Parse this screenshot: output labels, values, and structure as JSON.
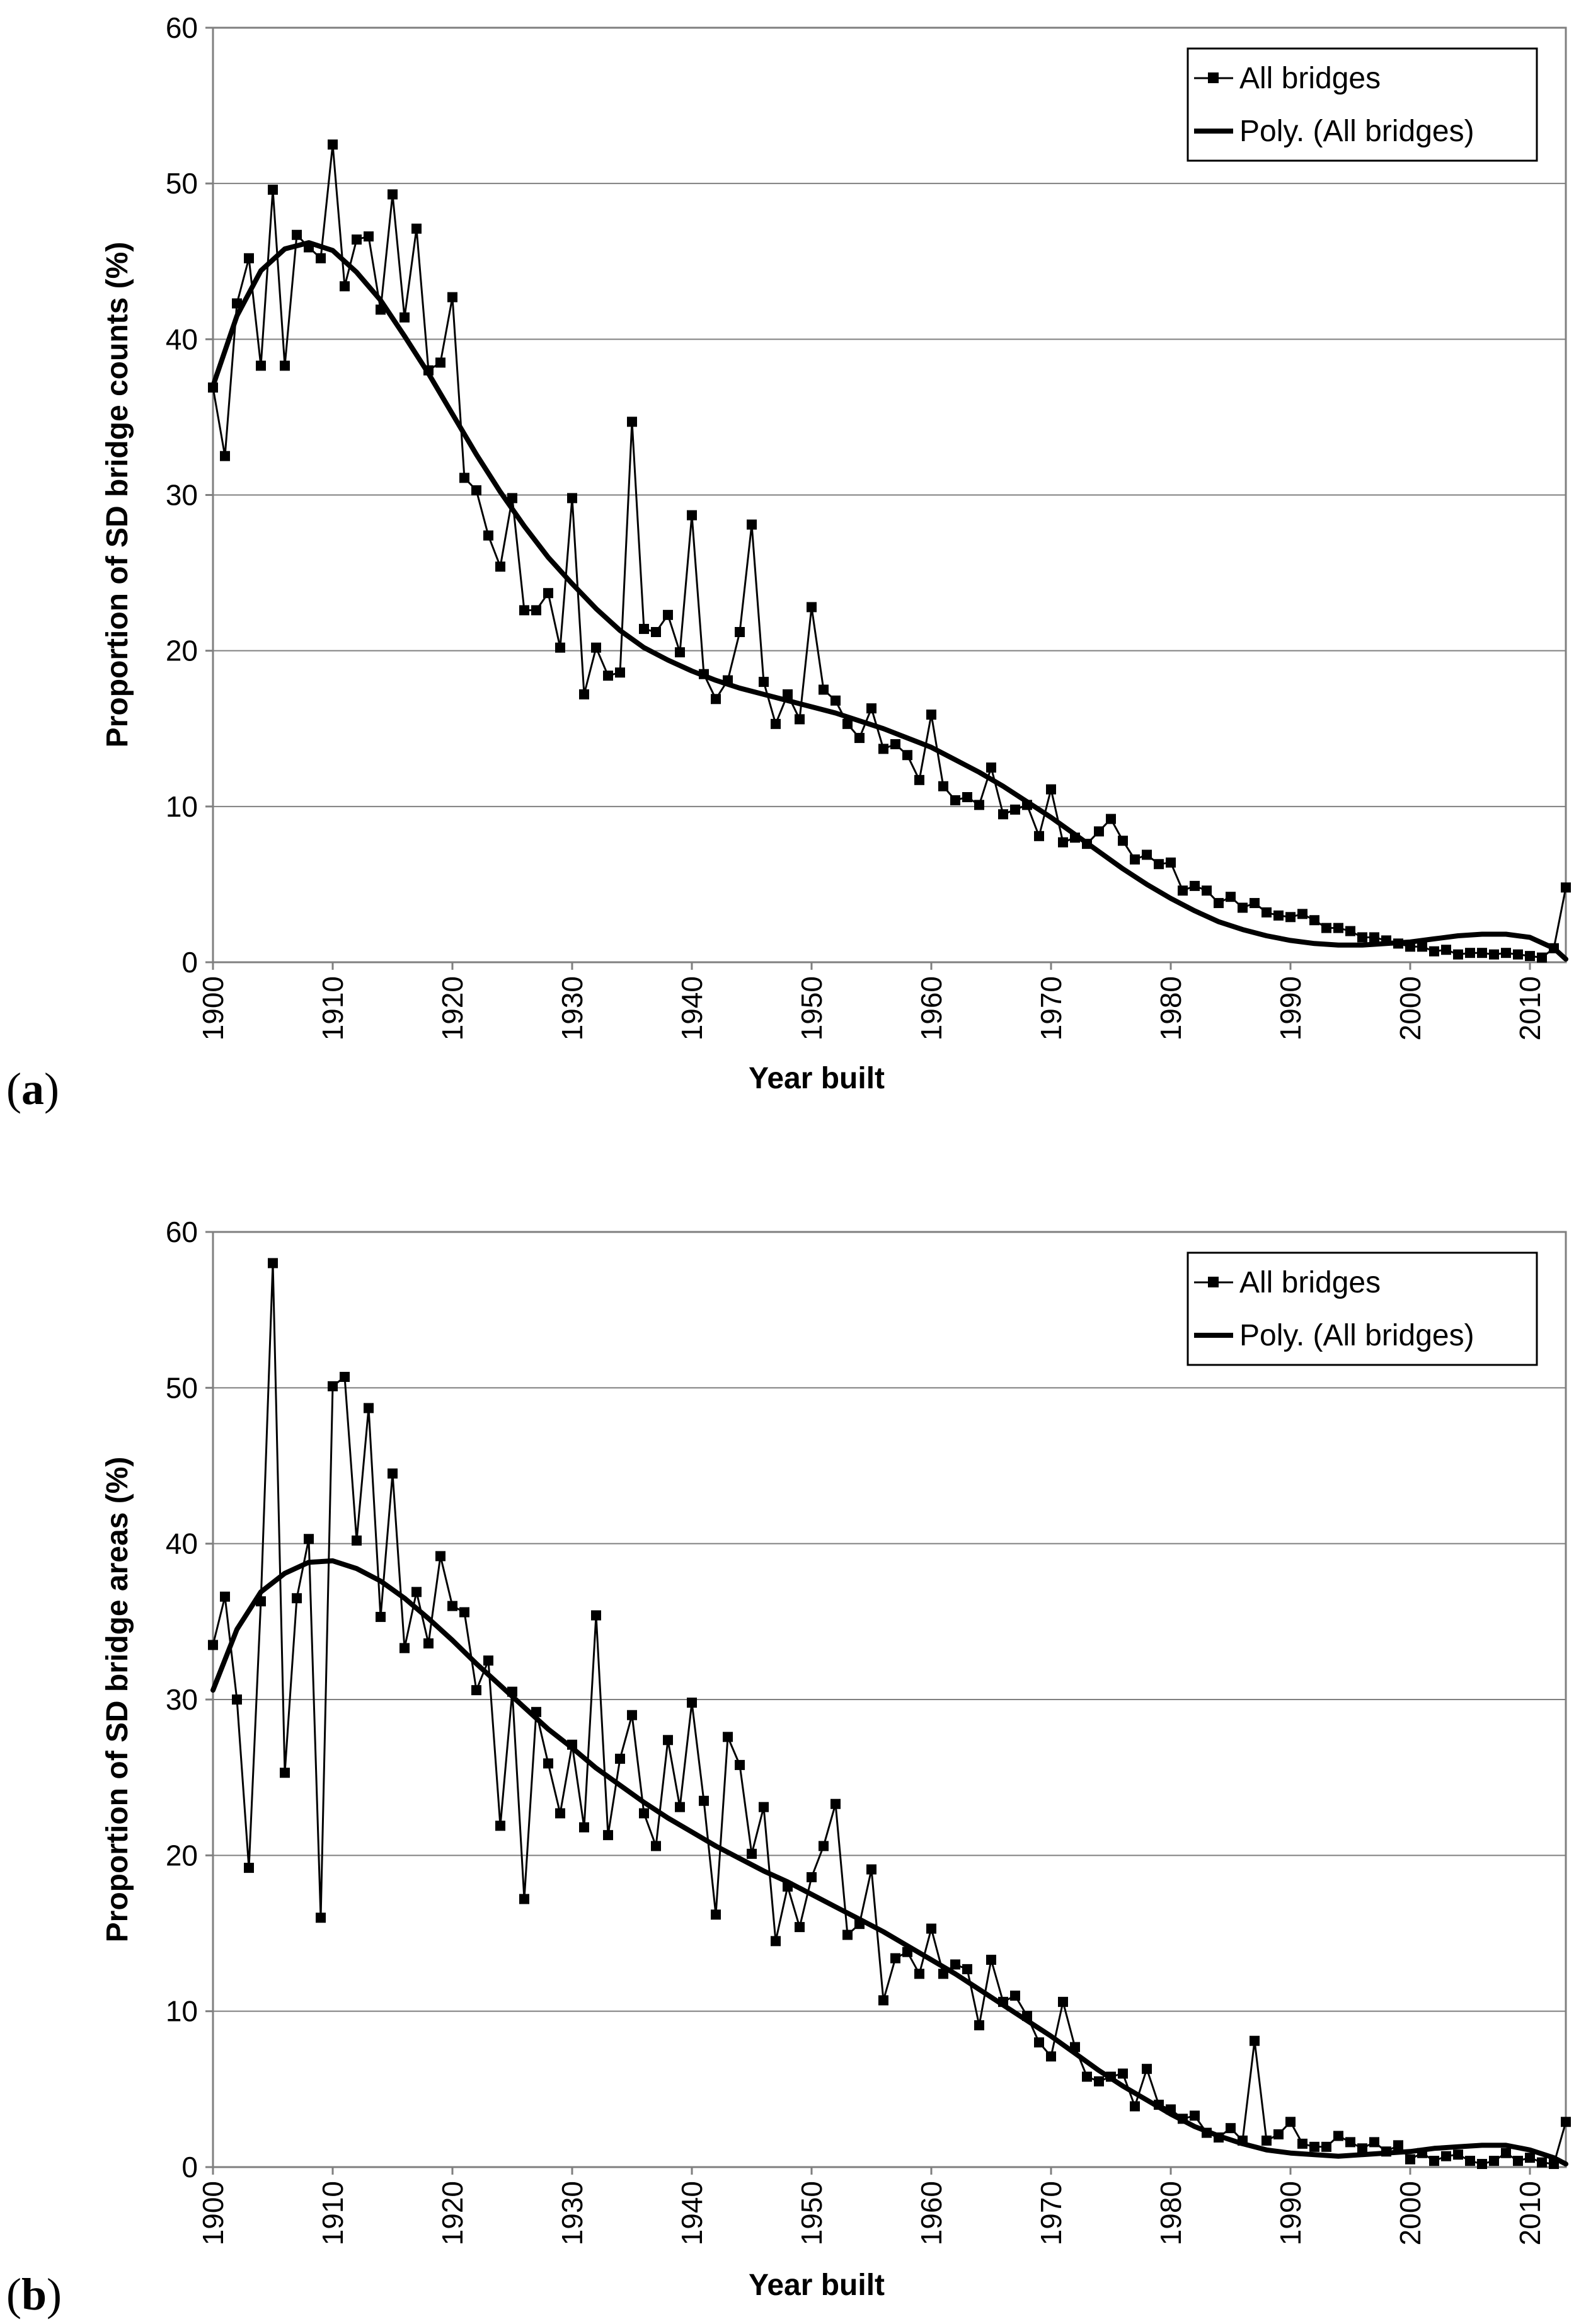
{
  "chart_data": [
    {
      "type": "line",
      "panel_label": "(a)",
      "panel_letter": "a",
      "title": "",
      "xlabel": "Year built",
      "ylabel": "Proportion of SD bridge counts (%)",
      "xlim": [
        1900,
        2013
      ],
      "ylim": [
        0,
        60
      ],
      "x_ticks": [
        1900,
        1910,
        1920,
        1930,
        1940,
        1950,
        1960,
        1970,
        1980,
        1990,
        2000,
        2010
      ],
      "y_ticks": [
        0,
        10,
        20,
        30,
        40,
        50,
        60
      ],
      "grid": true,
      "legend_position": "top-right",
      "series": [
        {
          "name": "All bridges",
          "style": "line-with-square-markers",
          "x": [
            1900,
            1901,
            1902,
            1903,
            1904,
            1905,
            1906,
            1907,
            1908,
            1909,
            1910,
            1911,
            1912,
            1913,
            1914,
            1915,
            1916,
            1917,
            1918,
            1919,
            1920,
            1921,
            1922,
            1923,
            1924,
            1925,
            1926,
            1927,
            1928,
            1929,
            1930,
            1931,
            1932,
            1933,
            1934,
            1935,
            1936,
            1937,
            1938,
            1939,
            1940,
            1941,
            1942,
            1943,
            1944,
            1945,
            1946,
            1947,
            1948,
            1949,
            1950,
            1951,
            1952,
            1953,
            1954,
            1955,
            1956,
            1957,
            1958,
            1959,
            1960,
            1961,
            1962,
            1963,
            1964,
            1965,
            1966,
            1967,
            1968,
            1969,
            1970,
            1971,
            1972,
            1973,
            1974,
            1975,
            1976,
            1977,
            1978,
            1979,
            1980,
            1981,
            1982,
            1983,
            1984,
            1985,
            1986,
            1987,
            1988,
            1989,
            1990,
            1991,
            1992,
            1993,
            1994,
            1995,
            1996,
            1997,
            1998,
            1999,
            2000,
            2001,
            2002,
            2003,
            2004,
            2005,
            2006,
            2007,
            2008,
            2009,
            2010,
            2011,
            2012,
            2013
          ],
          "values": [
            36.9,
            32.5,
            42.3,
            45.2,
            38.3,
            49.6,
            38.3,
            46.7,
            45.9,
            45.2,
            52.5,
            43.4,
            46.4,
            46.6,
            41.9,
            49.3,
            41.4,
            47.1,
            38.0,
            38.5,
            42.7,
            31.1,
            30.3,
            27.4,
            25.4,
            29.8,
            22.6,
            22.6,
            23.7,
            20.2,
            29.8,
            17.2,
            20.2,
            18.4,
            18.6,
            34.7,
            21.4,
            21.2,
            22.3,
            19.9,
            28.7,
            18.5,
            16.9,
            18.1,
            21.2,
            28.1,
            18.0,
            15.3,
            17.2,
            15.6,
            22.8,
            17.5,
            16.8,
            15.3,
            14.4,
            16.3,
            13.7,
            14.0,
            13.3,
            11.7,
            15.9,
            11.3,
            10.4,
            10.6,
            10.1,
            12.5,
            9.5,
            9.8,
            10.1,
            8.1,
            11.1,
            7.7,
            8.0,
            7.6,
            8.4,
            9.2,
            7.8,
            6.6,
            6.9,
            6.3,
            6.4,
            4.6,
            4.9,
            4.6,
            3.8,
            4.2,
            3.5,
            3.8,
            3.2,
            3.0,
            2.9,
            3.1,
            2.7,
            2.2,
            2.2,
            2.0,
            1.6,
            1.6,
            1.4,
            1.2,
            1.0,
            1.0,
            0.7,
            0.8,
            0.5,
            0.6,
            0.6,
            0.5,
            0.6,
            0.5,
            0.4,
            0.3,
            0.9,
            4.8
          ]
        },
        {
          "name": "Poly. (All bridges)",
          "style": "thick-line",
          "x": [
            1900,
            1902,
            1904,
            1906,
            1908,
            1910,
            1912,
            1914,
            1916,
            1918,
            1920,
            1922,
            1924,
            1926,
            1928,
            1930,
            1932,
            1934,
            1936,
            1938,
            1940,
            1942,
            1944,
            1946,
            1948,
            1950,
            1952,
            1954,
            1956,
            1958,
            1960,
            1962,
            1964,
            1966,
            1968,
            1970,
            1972,
            1974,
            1976,
            1978,
            1980,
            1982,
            1984,
            1986,
            1988,
            1990,
            1992,
            1994,
            1996,
            1998,
            2000,
            2002,
            2004,
            2006,
            2008,
            2010,
            2012,
            2013
          ],
          "values": [
            37.0,
            41.5,
            44.4,
            45.8,
            46.2,
            45.7,
            44.3,
            42.5,
            40.2,
            37.8,
            35.2,
            32.6,
            30.2,
            28.0,
            26.0,
            24.3,
            22.7,
            21.3,
            20.2,
            19.4,
            18.7,
            18.1,
            17.6,
            17.2,
            16.8,
            16.4,
            16.0,
            15.5,
            15.0,
            14.4,
            13.8,
            13.0,
            12.2,
            11.3,
            10.3,
            9.3,
            8.2,
            7.1,
            6.0,
            5.0,
            4.1,
            3.3,
            2.6,
            2.1,
            1.7,
            1.4,
            1.2,
            1.1,
            1.1,
            1.2,
            1.3,
            1.5,
            1.7,
            1.8,
            1.8,
            1.6,
            0.9,
            0.2
          ]
        }
      ]
    },
    {
      "type": "line",
      "panel_label": "(b)",
      "panel_letter": "b",
      "title": "",
      "xlabel": "Year built",
      "ylabel": "Proportion of SD bridge areas (%)",
      "xlim": [
        1900,
        2013
      ],
      "ylim": [
        0,
        60
      ],
      "x_ticks": [
        1900,
        1910,
        1920,
        1930,
        1940,
        1950,
        1960,
        1970,
        1980,
        1990,
        2000,
        2010
      ],
      "y_ticks": [
        0,
        10,
        20,
        30,
        40,
        50,
        60
      ],
      "grid": true,
      "legend_position": "top-right",
      "series": [
        {
          "name": "All bridges",
          "style": "line-with-square-markers",
          "x": [
            1900,
            1901,
            1902,
            1903,
            1904,
            1905,
            1906,
            1907,
            1908,
            1909,
            1910,
            1911,
            1912,
            1913,
            1914,
            1915,
            1916,
            1917,
            1918,
            1919,
            1920,
            1921,
            1922,
            1923,
            1924,
            1925,
            1926,
            1927,
            1928,
            1929,
            1930,
            1931,
            1932,
            1933,
            1934,
            1935,
            1936,
            1937,
            1938,
            1939,
            1940,
            1941,
            1942,
            1943,
            1944,
            1945,
            1946,
            1947,
            1948,
            1949,
            1950,
            1951,
            1952,
            1953,
            1954,
            1955,
            1956,
            1957,
            1958,
            1959,
            1960,
            1961,
            1962,
            1963,
            1964,
            1965,
            1966,
            1967,
            1968,
            1969,
            1970,
            1971,
            1972,
            1973,
            1974,
            1975,
            1976,
            1977,
            1978,
            1979,
            1980,
            1981,
            1982,
            1983,
            1984,
            1985,
            1986,
            1987,
            1988,
            1989,
            1990,
            1991,
            1992,
            1993,
            1994,
            1995,
            1996,
            1997,
            1998,
            1999,
            2000,
            2001,
            2002,
            2003,
            2004,
            2005,
            2006,
            2007,
            2008,
            2009,
            2010,
            2011,
            2012,
            2013
          ],
          "values": [
            33.5,
            36.6,
            30.0,
            19.2,
            36.3,
            58.0,
            25.3,
            36.5,
            40.3,
            16.0,
            50.1,
            50.7,
            40.2,
            48.7,
            35.3,
            44.5,
            33.3,
            36.9,
            33.6,
            39.2,
            36.0,
            35.6,
            30.6,
            32.5,
            21.9,
            30.5,
            17.2,
            29.2,
            25.9,
            22.7,
            27.1,
            21.8,
            35.4,
            21.3,
            26.2,
            29.0,
            22.7,
            20.6,
            27.4,
            23.1,
            29.8,
            23.5,
            16.2,
            27.6,
            25.8,
            20.1,
            23.1,
            14.5,
            18.0,
            15.4,
            18.6,
            20.6,
            23.3,
            14.9,
            15.6,
            19.1,
            10.7,
            13.4,
            13.8,
            12.4,
            15.3,
            12.4,
            13.0,
            12.7,
            9.1,
            13.3,
            10.6,
            11.0,
            9.7,
            8.0,
            7.1,
            10.6,
            7.7,
            5.8,
            5.5,
            5.8,
            6.0,
            3.9,
            6.3,
            4.0,
            3.7,
            3.1,
            3.3,
            2.2,
            1.9,
            2.5,
            1.7,
            8.1,
            1.7,
            2.1,
            2.9,
            1.5,
            1.3,
            1.3,
            2.0,
            1.6,
            1.2,
            1.6,
            1.0,
            1.4,
            0.5,
            0.9,
            0.4,
            0.7,
            0.8,
            0.4,
            0.2,
            0.4,
            0.9,
            0.4,
            0.6,
            0.3,
            0.2,
            2.9
          ]
        },
        {
          "name": "Poly. (All bridges)",
          "style": "thick-line",
          "x": [
            1900,
            1902,
            1904,
            1906,
            1908,
            1910,
            1912,
            1914,
            1916,
            1918,
            1920,
            1922,
            1924,
            1926,
            1928,
            1930,
            1932,
            1934,
            1936,
            1938,
            1940,
            1942,
            1944,
            1946,
            1948,
            1950,
            1952,
            1954,
            1956,
            1958,
            1960,
            1962,
            1964,
            1966,
            1968,
            1970,
            1972,
            1974,
            1976,
            1978,
            1980,
            1982,
            1984,
            1986,
            1988,
            1990,
            1992,
            1994,
            1996,
            1998,
            2000,
            2002,
            2004,
            2006,
            2008,
            2010,
            2012,
            2013
          ],
          "values": [
            30.6,
            34.5,
            36.9,
            38.1,
            38.8,
            38.9,
            38.4,
            37.6,
            36.5,
            35.2,
            33.8,
            32.3,
            30.9,
            29.5,
            28.1,
            26.9,
            25.6,
            24.5,
            23.4,
            22.4,
            21.5,
            20.6,
            19.8,
            19.0,
            18.3,
            17.5,
            16.7,
            15.9,
            15.1,
            14.2,
            13.3,
            12.4,
            11.4,
            10.4,
            9.4,
            8.4,
            7.3,
            6.2,
            5.2,
            4.3,
            3.4,
            2.6,
            2.0,
            1.5,
            1.1,
            0.9,
            0.8,
            0.7,
            0.8,
            0.9,
            1.0,
            1.2,
            1.3,
            1.4,
            1.4,
            1.1,
            0.6,
            0.2
          ]
        }
      ]
    }
  ]
}
